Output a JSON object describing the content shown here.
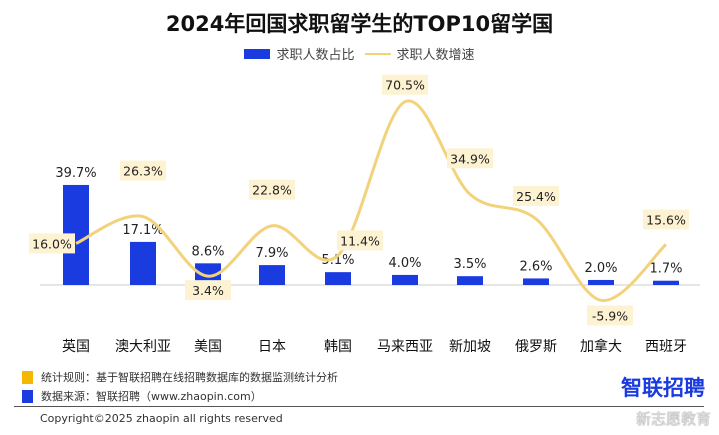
{
  "chart_data": {
    "type": "bar+line",
    "title": "2024年回国求职留学生的TOP10留学国",
    "categories": [
      "英国",
      "澳大利亚",
      "美国",
      "日本",
      "韩国",
      "马来西亚",
      "新加坡",
      "俄罗斯",
      "加拿大",
      "西班牙"
    ],
    "series": [
      {
        "name": "求职人数占比",
        "type": "bar",
        "unit": "%",
        "values": [
          39.7,
          17.1,
          8.6,
          7.9,
          5.1,
          4.0,
          3.5,
          2.6,
          2.0,
          1.7
        ],
        "color": "#1a3be0"
      },
      {
        "name": "求职人数增速",
        "type": "line",
        "unit": "%",
        "values": [
          16.0,
          26.3,
          3.4,
          22.8,
          11.4,
          70.5,
          34.9,
          25.4,
          -5.9,
          15.6
        ],
        "color": "#f2d27a"
      }
    ],
    "legend_position": "top-center"
  },
  "footer": {
    "rule": "统计规则：基于智联招聘在线招聘数据库的数据监测统计分析",
    "source": "数据来源：智联招聘（www.zhaopin.com）",
    "copyright": "Copyright©2025 zhaopin all rights reserved",
    "logo": "智联招聘",
    "watermark": "新志愿教育",
    "rule_color": "#f5b800",
    "source_color": "#1a3be0"
  }
}
